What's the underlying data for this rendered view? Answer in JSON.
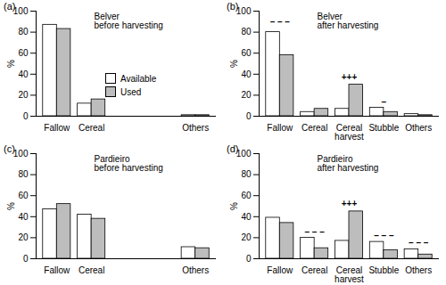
{
  "chart_data": [
    {
      "type": "bar",
      "panel_label": "(a)",
      "title": "Belver before harvesting",
      "categories": [
        "Fallow",
        "Cereal",
        null,
        null,
        "Others"
      ],
      "series": [
        {
          "name": "Available",
          "color": "#ffffff",
          "values": [
            87,
            12,
            null,
            null,
            1
          ]
        },
        {
          "name": "Used",
          "color": "#bdbdbd",
          "values": [
            83,
            16,
            null,
            null,
            1
          ]
        }
      ],
      "ylabel": "%",
      "ylim": [
        0,
        100
      ],
      "yticks": [
        0,
        20,
        40,
        60,
        80,
        100
      ],
      "legend": "right",
      "annotations": []
    },
    {
      "type": "bar",
      "panel_label": "(b)",
      "title": "Belver after harvesting",
      "categories": [
        "Fallow",
        "Cereal",
        "Cereal harvest",
        "Stubble",
        "Others"
      ],
      "series": [
        {
          "name": "Available",
          "color": "#ffffff",
          "values": [
            80,
            4,
            7,
            8,
            2
          ]
        },
        {
          "name": "Used",
          "color": "#bdbdbd",
          "values": [
            58,
            7,
            30,
            4,
            1
          ]
        }
      ],
      "ylabel": "%",
      "ylim": [
        0,
        100
      ],
      "yticks": [
        0,
        20,
        40,
        60,
        80,
        100
      ],
      "annotations": [
        {
          "category": "Fallow",
          "y": 90,
          "text": "– – –"
        },
        {
          "category": "Cereal harvest",
          "y": 37,
          "text": "+++"
        },
        {
          "category": "Stubble",
          "y": 13,
          "text": "–"
        }
      ]
    },
    {
      "type": "bar",
      "panel_label": "(c)",
      "title": "Pardieiro before harvesting",
      "categories": [
        "Fallow",
        "Cereal",
        null,
        null,
        "Others"
      ],
      "series": [
        {
          "name": "Available",
          "color": "#ffffff",
          "values": [
            47,
            42,
            null,
            null,
            11
          ]
        },
        {
          "name": "Used",
          "color": "#bdbdbd",
          "values": [
            52,
            38,
            null,
            null,
            10
          ]
        }
      ],
      "ylabel": "%",
      "ylim": [
        0,
        100
      ],
      "yticks": [
        0,
        20,
        40,
        60,
        80,
        100
      ],
      "annotations": []
    },
    {
      "type": "bar",
      "panel_label": "(d)",
      "title": "Pardieiro after harvesting",
      "categories": [
        "Fallow",
        "Cereal",
        "Cereal harvest",
        "Stubble",
        "Others"
      ],
      "series": [
        {
          "name": "Available",
          "color": "#ffffff",
          "values": [
            39,
            20,
            17,
            16,
            9
          ]
        },
        {
          "name": "Used",
          "color": "#bdbdbd",
          "values": [
            34,
            10,
            45,
            8,
            4
          ]
        }
      ],
      "ylabel": "%",
      "ylim": [
        0,
        100
      ],
      "yticks": [
        0,
        20,
        40,
        60,
        80,
        100
      ],
      "annotations": [
        {
          "category": "Cereal",
          "y": 25,
          "text": "– – –"
        },
        {
          "category": "Cereal harvest",
          "y": 52,
          "text": "+++"
        },
        {
          "category": "Stubble",
          "y": 22,
          "text": "– – –"
        },
        {
          "category": "Others",
          "y": 15,
          "text": "– – –"
        }
      ]
    }
  ]
}
